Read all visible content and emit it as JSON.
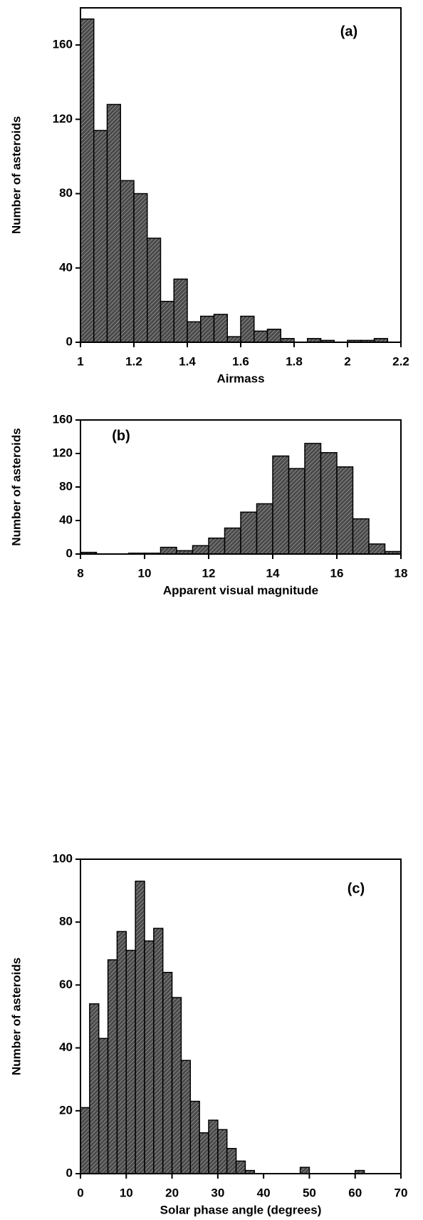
{
  "chart_data": [
    {
      "type": "histogram",
      "annotation": "(a)",
      "xlabel": "Airmass",
      "ylabel": "Number of asteroids",
      "bins": [
        1.0,
        1.05,
        1.1,
        1.15,
        1.2,
        1.25,
        1.3,
        1.35,
        1.4,
        1.45,
        1.5,
        1.55,
        1.6,
        1.65,
        1.7,
        1.75,
        1.8,
        1.85,
        1.9,
        1.95,
        2.0,
        2.05,
        2.1,
        2.15,
        2.2
      ],
      "values": [
        174,
        114,
        128,
        87,
        80,
        56,
        22,
        34,
        11,
        14,
        15,
        3,
        14,
        6,
        7,
        2,
        0,
        2,
        1,
        0,
        1,
        1,
        2,
        0
      ],
      "xlim": [
        1,
        2.2
      ],
      "xticks": [
        1,
        1.2,
        1.4,
        1.6,
        1.8,
        2,
        2.2
      ],
      "ylim": [
        0,
        180
      ],
      "yticks": [
        0,
        40,
        80,
        120,
        160
      ]
    },
    {
      "type": "histogram",
      "annotation": "(b)",
      "xlabel": "Apparent visual magnitude",
      "ylabel": "Number of asteroids",
      "bins": [
        8,
        8.5,
        9,
        9.5,
        10,
        10.5,
        11,
        11.5,
        12,
        12.5,
        13,
        13.5,
        14,
        14.5,
        15,
        15.5,
        16,
        16.5,
        17,
        17.5,
        18
      ],
      "values": [
        2,
        0,
        0,
        1,
        1,
        8,
        4,
        10,
        19,
        31,
        50,
        60,
        117,
        102,
        132,
        121,
        104,
        42,
        12,
        3
      ],
      "xlim": [
        8,
        18
      ],
      "xticks": [
        8,
        10,
        12,
        14,
        16,
        18
      ],
      "ylim": [
        0,
        160
      ],
      "yticks": [
        0,
        40,
        80,
        120,
        160
      ]
    },
    {
      "type": "histogram",
      "annotation": "(c)",
      "xlabel": "Solar phase angle (degrees)",
      "ylabel": "Number of asteroids",
      "bins": [
        0,
        2,
        4,
        6,
        8,
        10,
        12,
        14,
        16,
        18,
        20,
        22,
        24,
        26,
        28,
        30,
        32,
        34,
        36,
        38,
        40,
        42,
        44,
        46,
        48,
        50,
        52,
        54,
        56,
        58,
        60,
        62,
        64,
        66,
        68,
        70
      ],
      "values": [
        21,
        54,
        43,
        68,
        77,
        71,
        93,
        74,
        78,
        64,
        56,
        36,
        23,
        13,
        17,
        14,
        8,
        4,
        1,
        0,
        0,
        0,
        0,
        0,
        2,
        0,
        0,
        0,
        0,
        0,
        1,
        0,
        0,
        0,
        0
      ],
      "xlim": [
        0,
        70
      ],
      "xticks": [
        0,
        10,
        20,
        30,
        40,
        50,
        60,
        70
      ],
      "ylim": [
        0,
        100
      ],
      "yticks": [
        0,
        20,
        40,
        60,
        80,
        100
      ]
    }
  ]
}
